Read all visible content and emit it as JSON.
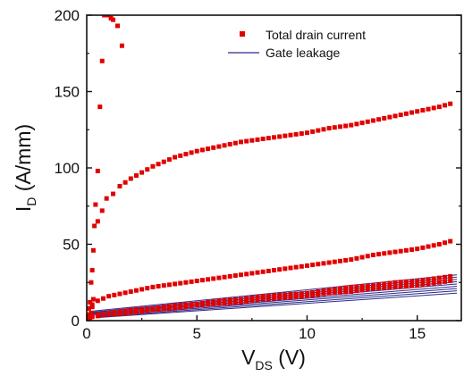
{
  "chart_data": {
    "type": "scatter",
    "title": "",
    "xlabel": {
      "main": "V",
      "sub": "DS",
      "unit": "(V)"
    },
    "ylabel": {
      "main": "I",
      "sub": "D",
      "unit": "(A/mm)"
    },
    "xlim": [
      0,
      17
    ],
    "ylim": [
      0,
      200
    ],
    "xticks": [
      0,
      5,
      10,
      15
    ],
    "yticks": [
      0,
      50,
      100,
      150,
      200
    ],
    "legend": {
      "placement": "top-right",
      "entries": [
        {
          "label": "Total drain current",
          "marker": "square",
          "color": "#e00000"
        },
        {
          "label": "Gate leakage",
          "marker": "line",
          "color": "#2b2b8c"
        }
      ]
    },
    "series": [
      {
        "name": "Total drain current",
        "color": "#e00000",
        "curves": [
          {
            "x": [
              0.05,
              0.1,
              0.15,
              0.2,
              0.25,
              0.3,
              0.35,
              0.4,
              0.5,
              0.6,
              0.7,
              0.8,
              0.9,
              1.0,
              1.1,
              1.2,
              1.4,
              1.6
            ],
            "y": [
              4,
              8,
              12,
              25,
              33,
              46,
              62,
              76,
              98,
              140,
              170,
              200,
              200,
              200,
              198,
              197,
              193,
              180
            ]
          },
          {
            "x": [
              0.5,
              0.7,
              0.9,
              1.2,
              1.5,
              2,
              2.5,
              3,
              3.5,
              4,
              4.5,
              5,
              6,
              7,
              8,
              9,
              10,
              11,
              12,
              13,
              14,
              15,
              16,
              16.5
            ],
            "y": [
              65,
              72,
              80,
              83,
              88,
              93,
              97,
              101,
              104,
              107,
              109,
              111,
              114,
              117,
              119,
              121,
              123,
              126,
              128,
              131,
              134,
              137,
              140,
              142
            ]
          },
          {
            "x": [
              0,
              0.5,
              1,
              2,
              3,
              4,
              5,
              6,
              7,
              8,
              9,
              10,
              11,
              12,
              13,
              14,
              15,
              16,
              16.5
            ],
            "y": [
              8,
              13,
              16,
              19,
              22,
              24,
              26,
              28,
              30,
              32,
              34,
              36,
              38,
              40,
              43,
              45,
              47,
              50,
              52
            ]
          },
          {
            "x": [
              0,
              1,
              2,
              3,
              4,
              5,
              6,
              7,
              8,
              9,
              10,
              11,
              12,
              13,
              14,
              15,
              16,
              16.5
            ],
            "y": [
              3,
              5,
              7,
              8,
              10,
              11,
              13,
              14,
              16,
              17,
              18,
              20,
              22,
              23,
              25,
              26,
              28,
              29
            ]
          },
          {
            "x": [
              0,
              1,
              2,
              3,
              4,
              5,
              6,
              7,
              8,
              9,
              10,
              11,
              12,
              13,
              14,
              15,
              16,
              16.5
            ],
            "y": [
              2,
              4,
              5,
              7,
              8,
              10,
              11,
              12,
              14,
              15,
              16,
              18,
              19,
              21,
              22,
              23,
              25,
              26
            ]
          },
          {
            "x": [
              0,
              0.05,
              0.1,
              0.15,
              0.2,
              0.25,
              0.3
            ],
            "y": [
              0,
              1,
              3,
              2,
              5,
              9,
              14
            ]
          }
        ]
      },
      {
        "name": "Gate leakage",
        "color": "#2b2b8c",
        "lines": [
          {
            "x": [
              0.5,
              16.8
            ],
            "y": [
              2,
              18
            ]
          },
          {
            "x": [
              0.5,
              16.8
            ],
            "y": [
              2.5,
              19.5
            ]
          },
          {
            "x": [
              0.4,
              16.8
            ],
            "y": [
              3,
              21
            ]
          },
          {
            "x": [
              0.4,
              16.8
            ],
            "y": [
              3.5,
              22.5
            ]
          },
          {
            "x": [
              0.3,
              16.8
            ],
            "y": [
              4,
              24
            ]
          },
          {
            "x": [
              0.3,
              16.8
            ],
            "y": [
              4.5,
              25.5
            ]
          },
          {
            "x": [
              0.2,
              16.8
            ],
            "y": [
              5,
              27
            ]
          },
          {
            "x": [
              0.2,
              16.8
            ],
            "y": [
              5.5,
              28.5
            ]
          },
          {
            "x": [
              0.1,
              16.8
            ],
            "y": [
              6,
              30
            ]
          }
        ]
      }
    ]
  }
}
